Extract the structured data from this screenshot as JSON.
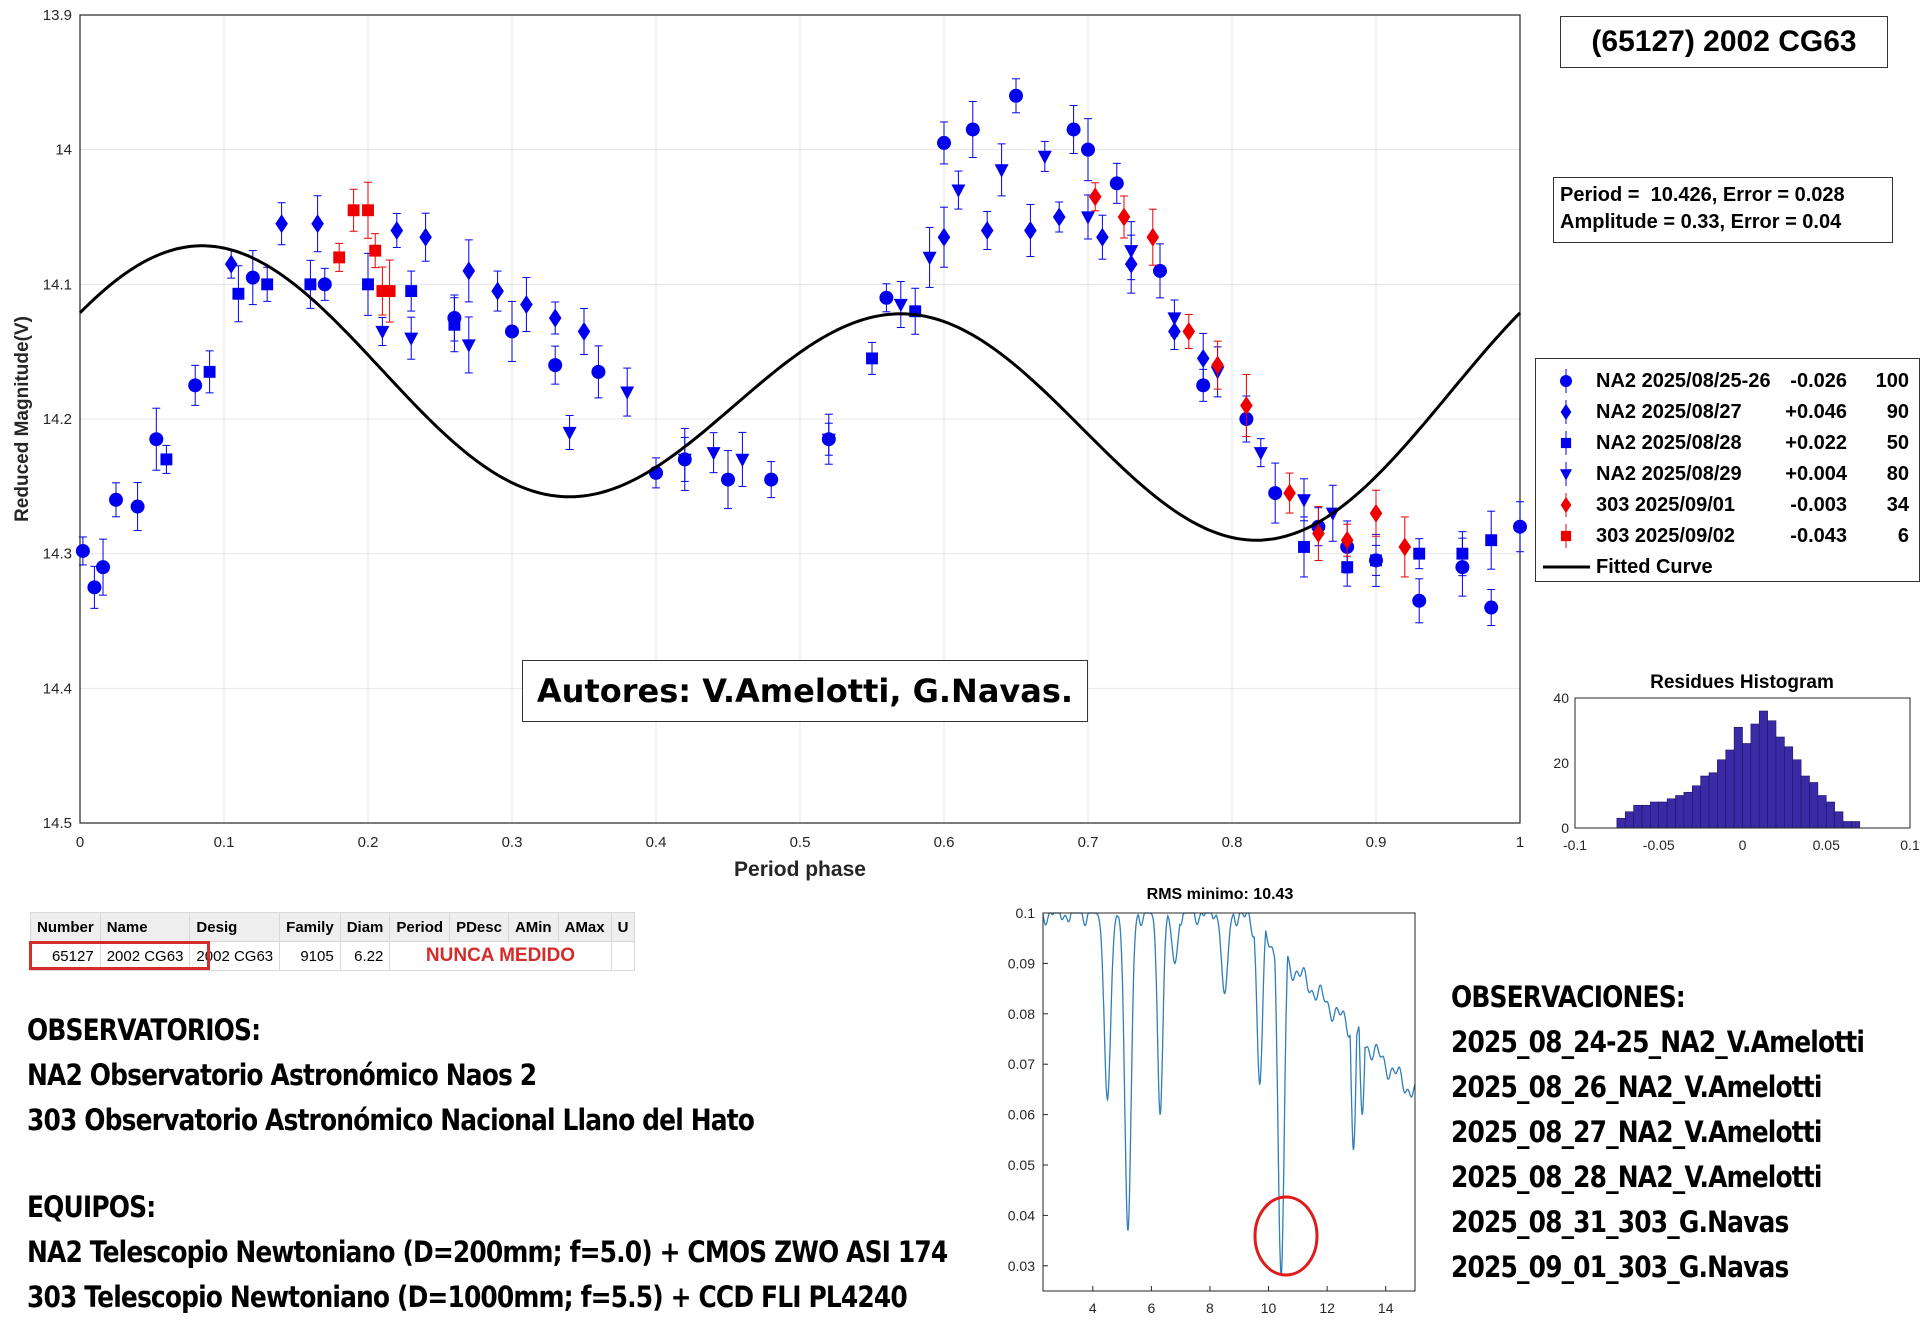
{
  "chart_data": [
    {
      "type": "scatter",
      "title": "(65127) 2002 CG63",
      "xlabel": "Period phase",
      "ylabel": "Reduced Magnitude(V)",
      "xlim": [
        0,
        1
      ],
      "ylim": [
        13.9,
        14.5
      ],
      "y_reversed": true,
      "grid": true,
      "x_ticks": [
        "0",
        "0.1",
        "0.2",
        "0.3",
        "0.4",
        "0.5",
        "0.6",
        "0.7",
        "0.8",
        "0.9",
        "1"
      ],
      "y_ticks": [
        "13.9",
        "14",
        "14.1",
        "14.2",
        "14.3",
        "14.4",
        "14.5"
      ],
      "fit_box": [
        "Period =  10.426, Error = 0.028",
        "Amplitude = 0.33, Error = 0.04"
      ],
      "period": 10.426,
      "period_error": 0.028,
      "amplitude": 0.33,
      "amplitude_error": 0.04,
      "authors": "Autores: V.Amelotti, G.Navas.",
      "legend_position": "right",
      "legend": [
        {
          "name": "NA2 2025/08/25-26",
          "offset": "-0.026",
          "count": "100",
          "marker": "circle",
          "color": "#0000ee"
        },
        {
          "name": "NA2 2025/08/27",
          "offset": "+0.046",
          "count": "90",
          "marker": "diamond",
          "color": "#0000ee"
        },
        {
          "name": "NA2 2025/08/28",
          "offset": "+0.022",
          "count": "50",
          "marker": "square",
          "color": "#0000ee"
        },
        {
          "name": "NA2 2025/08/29",
          "offset": "+0.004",
          "count": "80",
          "marker": "triangle-down",
          "color": "#0000ee"
        },
        {
          "name": "303 2025/09/01",
          "offset": "-0.003",
          "count": "34",
          "marker": "diamond",
          "color": "#ee0000"
        },
        {
          "name": "303 2025/09/02",
          "offset": "-0.043",
          "count": "6",
          "marker": "square",
          "color": "#ee0000"
        },
        {
          "name": "Fitted Curve",
          "marker": "line",
          "color": "#000000"
        }
      ],
      "fitted_curve": {
        "mean": 14.185,
        "terms": [
          [
            1,
            0.03,
            4.2
          ],
          [
            2,
            0.088,
            4.12
          ]
        ]
      },
      "series": [
        {
          "name": "NA2 2025/08/25-26",
          "color": "#0000ee",
          "marker": "circle",
          "x": [
            0.002,
            0.01,
            0.016,
            0.025,
            0.04,
            0.053,
            0.08,
            0.12,
            0.17,
            0.26,
            0.3,
            0.33,
            0.36,
            0.4,
            0.42,
            0.45,
            0.48,
            0.52,
            0.56,
            0.6,
            0.62,
            0.65,
            0.69,
            0.7,
            0.72,
            0.75,
            0.78,
            0.81,
            0.83,
            0.86,
            0.88,
            0.9,
            0.93,
            0.96,
            0.98,
            1.0
          ],
          "y": [
            14.298,
            14.325,
            14.31,
            14.26,
            14.265,
            14.215,
            14.175,
            14.095,
            14.1,
            14.125,
            14.135,
            14.16,
            14.165,
            14.24,
            14.23,
            14.245,
            14.245,
            14.215,
            14.11,
            13.995,
            13.985,
            13.96,
            13.985,
            14.0,
            14.025,
            14.09,
            14.175,
            14.2,
            14.255,
            14.28,
            14.295,
            14.305,
            14.335,
            14.31,
            14.34,
            14.28
          ]
        },
        {
          "name": "NA2 2025/08/27",
          "color": "#0000ee",
          "marker": "diamond",
          "x": [
            0.105,
            0.14,
            0.165,
            0.22,
            0.24,
            0.27,
            0.29,
            0.31,
            0.33,
            0.35,
            0.6,
            0.63,
            0.66,
            0.68,
            0.71,
            0.73,
            0.76,
            0.78
          ],
          "y": [
            14.085,
            14.055,
            14.055,
            14.06,
            14.065,
            14.09,
            14.105,
            14.115,
            14.125,
            14.135,
            14.065,
            14.06,
            14.06,
            14.05,
            14.065,
            14.085,
            14.135,
            14.155
          ]
        },
        {
          "name": "NA2 2025/08/28",
          "color": "#0000ee",
          "marker": "square",
          "x": [
            0.06,
            0.09,
            0.11,
            0.13,
            0.16,
            0.2,
            0.23,
            0.26,
            0.55,
            0.58,
            0.85,
            0.88,
            0.9,
            0.93,
            0.96,
            0.98
          ],
          "y": [
            14.23,
            14.165,
            14.107,
            14.1,
            14.1,
            14.1,
            14.105,
            14.13,
            14.155,
            14.12,
            14.295,
            14.31,
            14.305,
            14.3,
            14.3,
            14.29
          ]
        },
        {
          "name": "NA2 2025/08/29",
          "color": "#0000ee",
          "marker": "triangle-down",
          "x": [
            0.21,
            0.23,
            0.27,
            0.34,
            0.38,
            0.42,
            0.44,
            0.46,
            0.52,
            0.57,
            0.59,
            0.61,
            0.64,
            0.67,
            0.7,
            0.73,
            0.76,
            0.79,
            0.82,
            0.85,
            0.87
          ],
          "y": [
            14.135,
            14.14,
            14.145,
            14.21,
            14.18,
            14.23,
            14.225,
            14.23,
            14.215,
            14.115,
            14.08,
            14.03,
            14.015,
            14.005,
            14.05,
            14.075,
            14.125,
            14.165,
            14.225,
            14.26,
            14.27
          ]
        },
        {
          "name": "303 2025/09/01",
          "color": "#ee0000",
          "marker": "diamond",
          "x": [
            0.705,
            0.725,
            0.745,
            0.77,
            0.79,
            0.81,
            0.84,
            0.86,
            0.88,
            0.9,
            0.92
          ],
          "y": [
            14.035,
            14.05,
            14.065,
            14.135,
            14.16,
            14.19,
            14.255,
            14.285,
            14.29,
            14.27,
            14.295
          ]
        },
        {
          "name": "303 2025/09/02",
          "color": "#ee0000",
          "marker": "square",
          "x": [
            0.18,
            0.19,
            0.2,
            0.205,
            0.21,
            0.215
          ],
          "y": [
            14.08,
            14.045,
            14.045,
            14.075,
            14.105,
            14.105
          ]
        }
      ]
    },
    {
      "type": "bar",
      "title": "Residues Histogram",
      "xlim": [
        -0.1,
        0.1
      ],
      "ylim": [
        0,
        40
      ],
      "x_ticks": [
        "-0.1",
        "-0.05",
        "0",
        "0.05",
        "0.1"
      ],
      "y_ticks": [
        "0",
        "20",
        "40"
      ],
      "bin_width": 0.005,
      "bin_centers": [
        -0.0725,
        -0.0675,
        -0.0625,
        -0.0575,
        -0.0525,
        -0.0475,
        -0.0425,
        -0.0375,
        -0.0325,
        -0.0275,
        -0.0225,
        -0.0175,
        -0.0125,
        -0.0075,
        -0.0025,
        0.0025,
        0.0075,
        0.0125,
        0.0175,
        0.0225,
        0.0275,
        0.0325,
        0.0375,
        0.0425,
        0.0475,
        0.0525,
        0.0575,
        0.0625,
        0.0675
      ],
      "values": [
        3,
        5,
        7,
        7,
        8,
        8,
        9,
        10,
        11,
        13,
        16,
        17,
        21,
        24,
        31,
        26,
        32,
        36,
        33,
        28,
        25,
        21,
        16,
        14,
        10,
        8,
        5,
        2,
        2
      ],
      "bar_color": "#3b2aa6"
    },
    {
      "type": "line",
      "title": "RMS minimo: 10.43",
      "xlim": [
        2.3,
        15
      ],
      "ylim": [
        0.025,
        0.1
      ],
      "x_ticks": [
        "4",
        "6",
        "8",
        "10",
        "12",
        "14"
      ],
      "y_ticks": [
        "0.03",
        "0.04",
        "0.05",
        "0.06",
        "0.07",
        "0.08",
        "0.09",
        "0.1"
      ],
      "line_color": "#2f7fb8",
      "minimum": {
        "x": 10.43,
        "y": 0.028
      },
      "dips": [
        [
          4.5,
          0.063
        ],
        [
          5.2,
          0.037
        ],
        [
          6.3,
          0.06
        ],
        [
          6.8,
          0.09
        ],
        [
          8.5,
          0.084
        ],
        [
          9.7,
          0.066
        ],
        [
          10.43,
          0.028
        ],
        [
          11.2,
          0.092
        ],
        [
          12.3,
          0.093
        ],
        [
          12.9,
          0.053
        ],
        [
          13.2,
          0.06
        ],
        [
          14.2,
          0.087
        ]
      ]
    }
  ],
  "catalog": {
    "headers": [
      "Number",
      "Name",
      "Desig",
      "Family",
      "Diam",
      "Period",
      "PDesc",
      "AMin",
      "AMax",
      "U"
    ],
    "row": {
      "number": "65127",
      "name": "2002 CG63",
      "desig": "2002 CG63",
      "family": "9105",
      "diam": "6.22",
      "status": "NUNCA MEDIDO"
    }
  },
  "observatorios": {
    "heading": "OBSERVATORIOS:",
    "lines": [
      "NA2 Observatorio Astronómico Naos 2",
      "303 Observatorio Astronómico Nacional Llano del Hato"
    ]
  },
  "equipos": {
    "heading": "EQUIPOS:",
    "lines": [
      "NA2 Telescopio Newtoniano (D=200mm; f=5.0) + CMOS ZWO ASI 174",
      "303 Telescopio Newtoniano (D=1000mm; f=5.5) + CCD FLI PL4240"
    ]
  },
  "observaciones": {
    "heading": "OBSERVACIONES:",
    "lines": [
      "2025_08_24-25_NA2_V.Amelotti",
      "2025_08_26_NA2_V.Amelotti",
      "2025_08_27_NA2_V.Amelotti",
      "2025_08_28_NA2_V.Amelotti",
      "2025_08_31_303_G.Navas",
      "2025_09_01_303_G.Navas"
    ]
  }
}
